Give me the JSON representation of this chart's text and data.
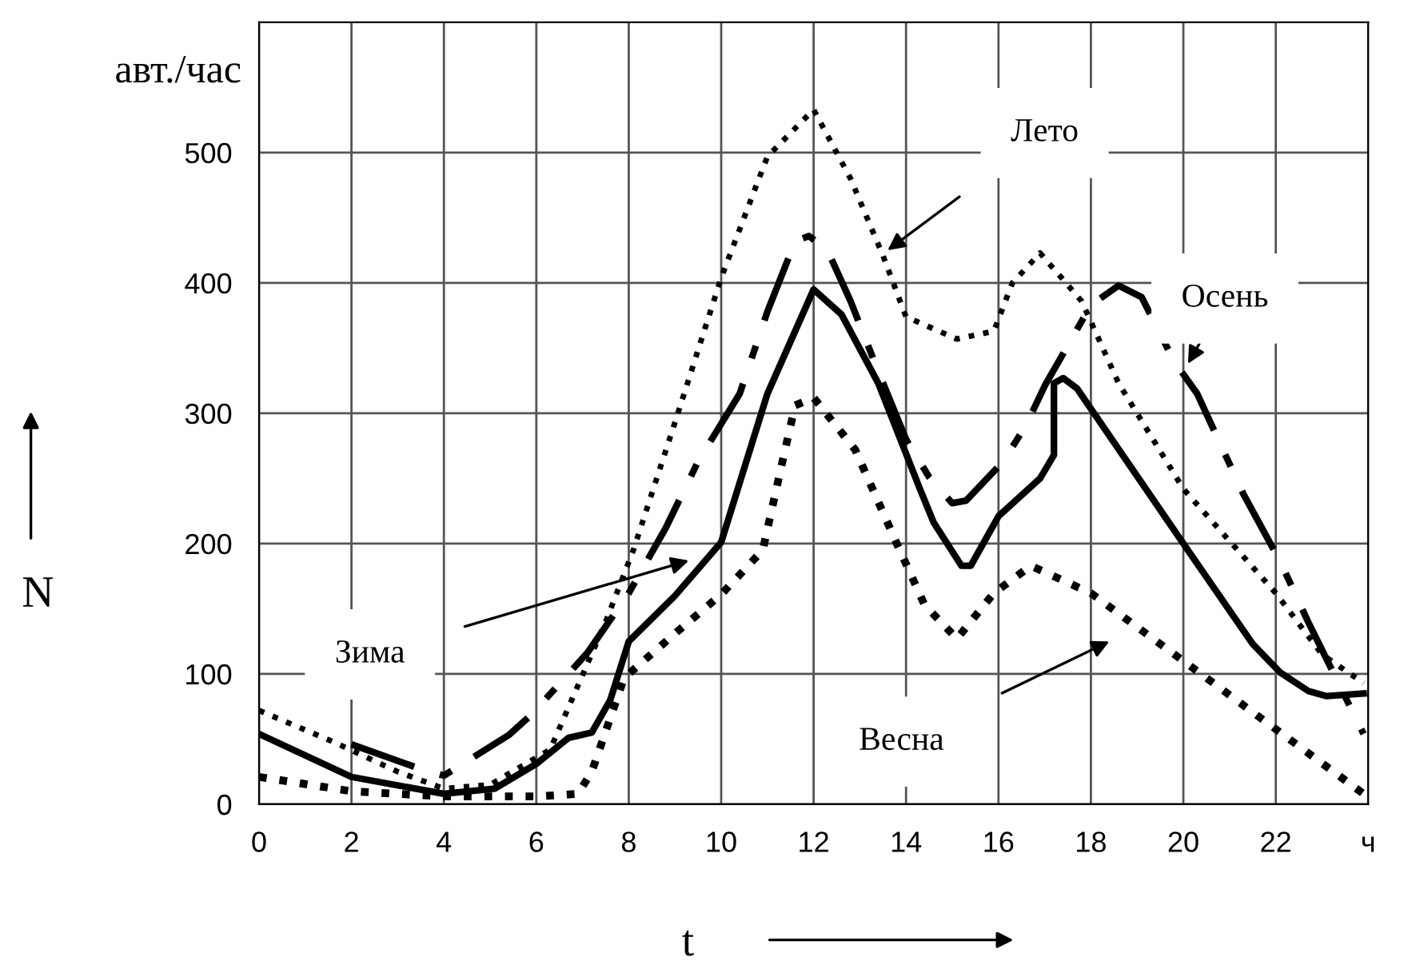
{
  "chart_data": {
    "type": "line",
    "ylabel": "N",
    "xlabel": "t",
    "annotations": [
      "авт./час",
      "Лето",
      "Осень",
      "Зима",
      "Весна"
    ],
    "xlim": [
      0,
      24
    ],
    "ylim": [
      0,
      600
    ],
    "xticks": [
      0,
      2,
      4,
      6,
      8,
      10,
      12,
      14,
      16,
      18,
      20,
      22,
      {
        "value": 24,
        "label": "ч"
      }
    ],
    "yticks": [
      0,
      100,
      200,
      300,
      400,
      500
    ],
    "grid": true,
    "legend": false,
    "series": [
      {
        "color": "#000000",
        "line_style": "dotted",
        "x": [
          0,
          1.6,
          3,
          4,
          5,
          6.3,
          7.5,
          8.1,
          9.0,
          10,
          11,
          12,
          12.8,
          13.5,
          14,
          15.1,
          15.9,
          16.3,
          16.9,
          17.8,
          18.6,
          20,
          22,
          23,
          23.9
        ],
        "values": [
          72,
          48,
          25,
          12,
          15,
          42,
          140,
          195,
          293,
          404,
          497,
          533,
          480,
          421,
          374,
          357,
          363,
          400,
          423,
          386,
          323,
          242,
          162,
          115,
          93
        ]
      },
      {
        "color": "#000000",
        "line_style": "solid",
        "x": [
          0,
          2,
          4,
          5.1,
          6,
          6.7,
          7.2,
          7.6,
          8,
          9,
          10,
          11,
          12,
          12.6,
          13.4,
          14.3,
          14.6,
          15.2,
          15.4,
          16,
          16.9,
          17.2,
          17.2,
          17.4,
          17.7,
          20,
          21.5,
          22.1,
          22.7,
          23.1,
          23.9
        ],
        "values": [
          54,
          21,
          8,
          12,
          31,
          51,
          55,
          80,
          125,
          160,
          201,
          315,
          395,
          376,
          323,
          242,
          216,
          183,
          183,
          221,
          250,
          268,
          323,
          327,
          319,
          200,
          123,
          101,
          87,
          83,
          85
        ]
      },
      {
        "color": "#000000",
        "line_style": "dashed",
        "x": [
          2,
          3.5,
          4,
          5.4,
          5.9,
          7.1,
          8,
          8.8,
          9.5,
          10.4,
          11,
          11.6,
          11.9,
          12.3,
          12.8,
          13.4,
          14,
          14.5,
          15,
          15.3,
          16.1,
          16.6,
          17,
          18,
          18.6,
          19.1,
          19.8,
          20.3,
          21.3,
          22.1,
          22.7,
          23.9
        ],
        "values": [
          46,
          27,
          22,
          53,
          69,
          116,
          162,
          212,
          263,
          315,
          378,
          432,
          436,
          425,
          386,
          332,
          280,
          251,
          231,
          233,
          263,
          291,
          321,
          383,
          398,
          389,
          340,
          315,
          238,
          186,
          140,
          54
        ]
      },
      {
        "color": "#000000",
        "line_style": "dotted",
        "x": [
          0,
          2,
          4,
          6,
          6.9,
          7.2,
          7.9,
          9,
          10,
          10.9,
          11.3,
          11.6,
          12,
          12.9,
          13.8,
          14.4,
          15.1,
          15.9,
          16.7,
          18,
          20,
          22.1,
          23.9
        ],
        "values": [
          21,
          10,
          6,
          6,
          8,
          25,
          97,
          131,
          161,
          195,
          259,
          306,
          312,
          272,
          200,
          153,
          127,
          162,
          183,
          162,
          110,
          55,
          8
        ]
      }
    ]
  }
}
